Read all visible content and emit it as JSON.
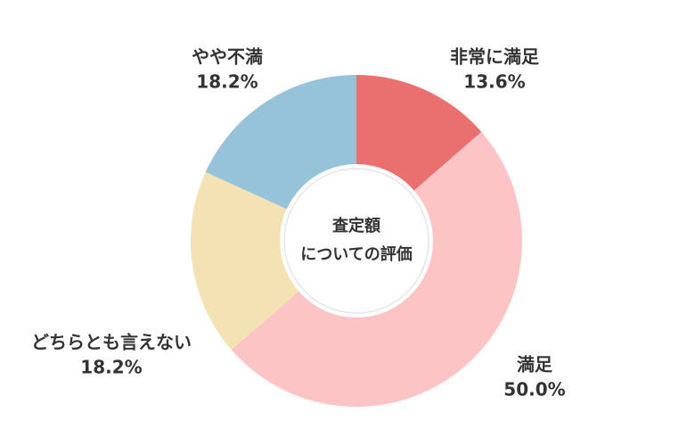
{
  "chart_data": {
    "type": "donut",
    "center_text": [
      "査定額",
      "についての評価"
    ],
    "categories": [
      "非常に満足",
      "満足",
      "どちらとも言えない",
      "やや不満"
    ],
    "values": [
      13.6,
      50.0,
      18.2,
      18.2
    ],
    "value_labels": [
      "13.6%",
      "50.0%",
      "18.2%",
      "18.2%"
    ],
    "colors": [
      "#ea7070",
      "#fdc4c6",
      "#f5e2b4",
      "#96c2da"
    ]
  }
}
